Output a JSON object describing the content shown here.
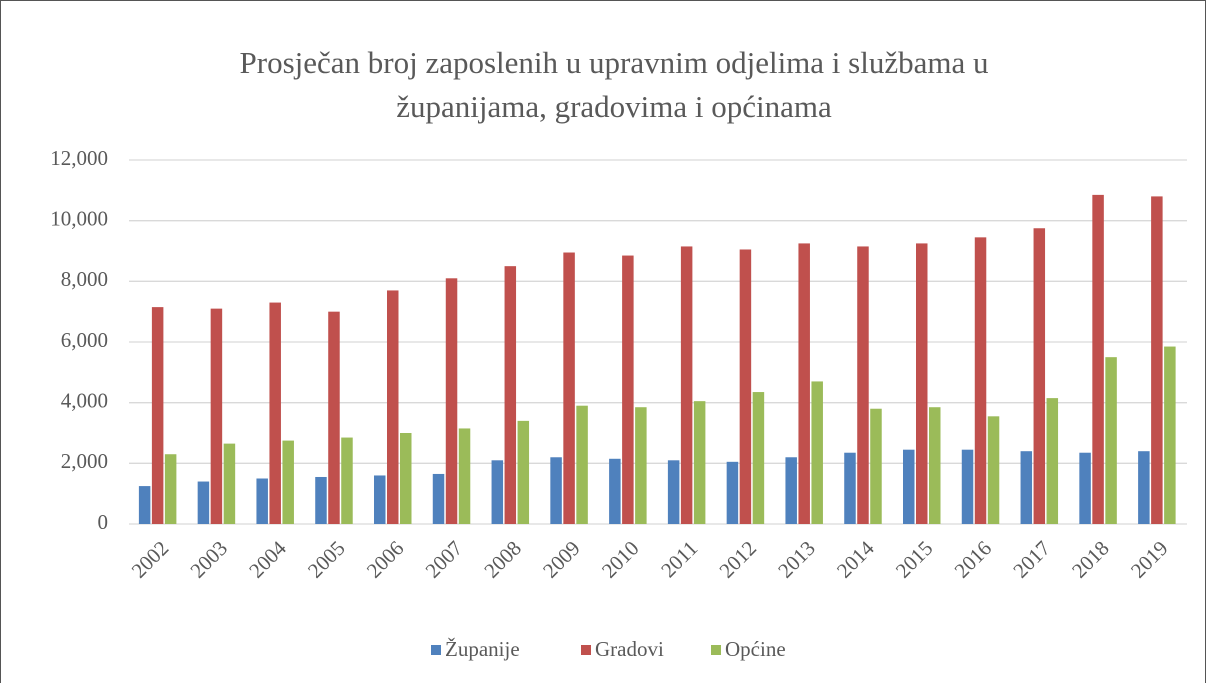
{
  "chart_data": {
    "type": "bar",
    "title": "Prosječan broj zaposlenih u upravnim odjelima i službama u županijama, gradovima i općinama",
    "categories": [
      "2002",
      "2003",
      "2004",
      "2005",
      "2006",
      "2007",
      "2008",
      "2009",
      "2010",
      "2011",
      "2012",
      "2013",
      "2014",
      "2015",
      "2016",
      "2017",
      "2018",
      "2019"
    ],
    "series": [
      {
        "name": "Županije",
        "color": "#4f81bd",
        "values": [
          1250,
          1400,
          1500,
          1550,
          1600,
          1650,
          2100,
          2200,
          2150,
          2100,
          2050,
          2200,
          2350,
          2450,
          2450,
          2400,
          2350,
          2400
        ]
      },
      {
        "name": "Gradovi",
        "color": "#c0504d",
        "values": [
          7150,
          7100,
          7300,
          7000,
          7700,
          8100,
          8500,
          8950,
          8850,
          9150,
          9050,
          9250,
          9150,
          9250,
          9450,
          9750,
          10850,
          10800
        ]
      },
      {
        "name": "Općine",
        "color": "#9bbb59",
        "values": [
          2300,
          2650,
          2750,
          2850,
          3000,
          3150,
          3400,
          3900,
          3850,
          4050,
          4350,
          4700,
          3800,
          3850,
          3550,
          4150,
          5500,
          5850
        ]
      }
    ],
    "ylim": [
      0,
      12000
    ],
    "yticks": [
      0,
      {
        "value": 2000,
        "label": "2,000"
      },
      {
        "value": 4000,
        "label": "4,000"
      },
      {
        "value": 6000,
        "label": "6,000"
      },
      {
        "value": 8000,
        "label": "8,000"
      },
      {
        "value": 10000,
        "label": "10,000"
      },
      {
        "value": 12000,
        "label": "12,000"
      }
    ],
    "grid": true,
    "legend": "bottom"
  }
}
